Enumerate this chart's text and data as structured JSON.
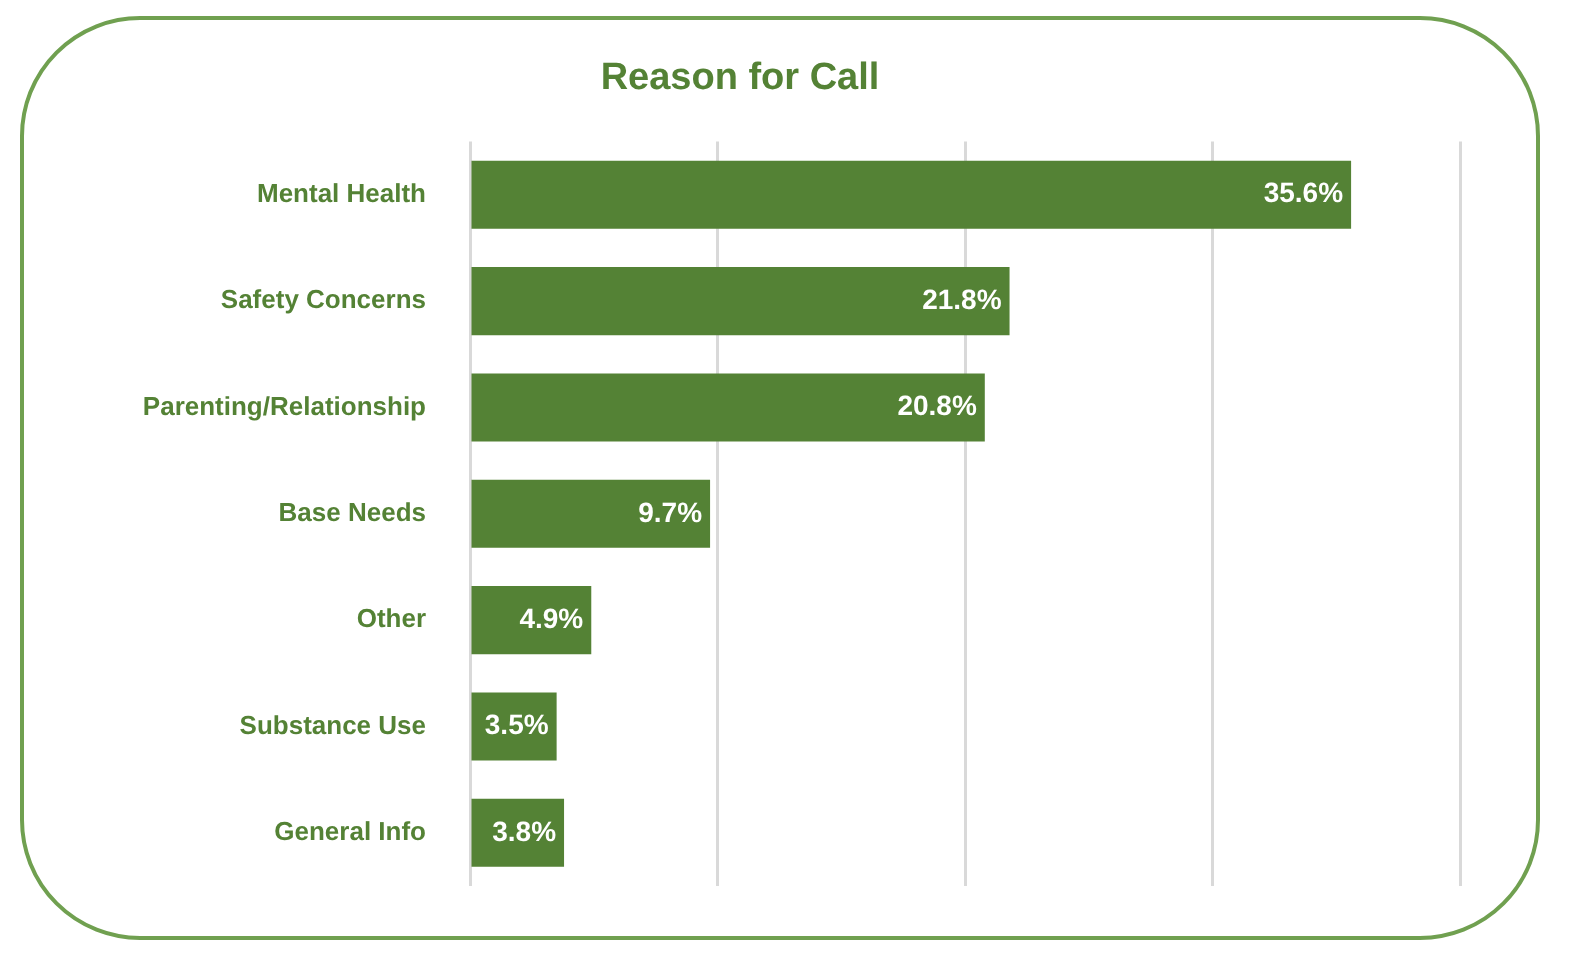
{
  "chart_data": {
    "type": "bar",
    "orientation": "horizontal",
    "title": "Reason for Call",
    "categories": [
      "Mental Health",
      "Safety Concerns",
      "Parenting/Relationship",
      "Base Needs",
      "Other",
      "Substance Use",
      "General Info"
    ],
    "values": [
      35.6,
      21.8,
      20.8,
      9.7,
      4.9,
      3.5,
      3.8
    ],
    "value_labels": [
      "35.6%",
      "21.8%",
      "20.8%",
      "9.7%",
      "4.9%",
      "3.5%",
      "3.8%"
    ],
    "color": "#548235",
    "xlim": [
      0,
      40
    ],
    "xticks": [
      {
        "value": 0,
        "label": null
      },
      {
        "value": 10,
        "label": null
      },
      {
        "value": 20,
        "label": null
      },
      {
        "value": 30,
        "label": null
      },
      {
        "value": 40,
        "label": null
      }
    ],
    "grid": "x",
    "tick_labels": "y",
    "legend": false
  }
}
